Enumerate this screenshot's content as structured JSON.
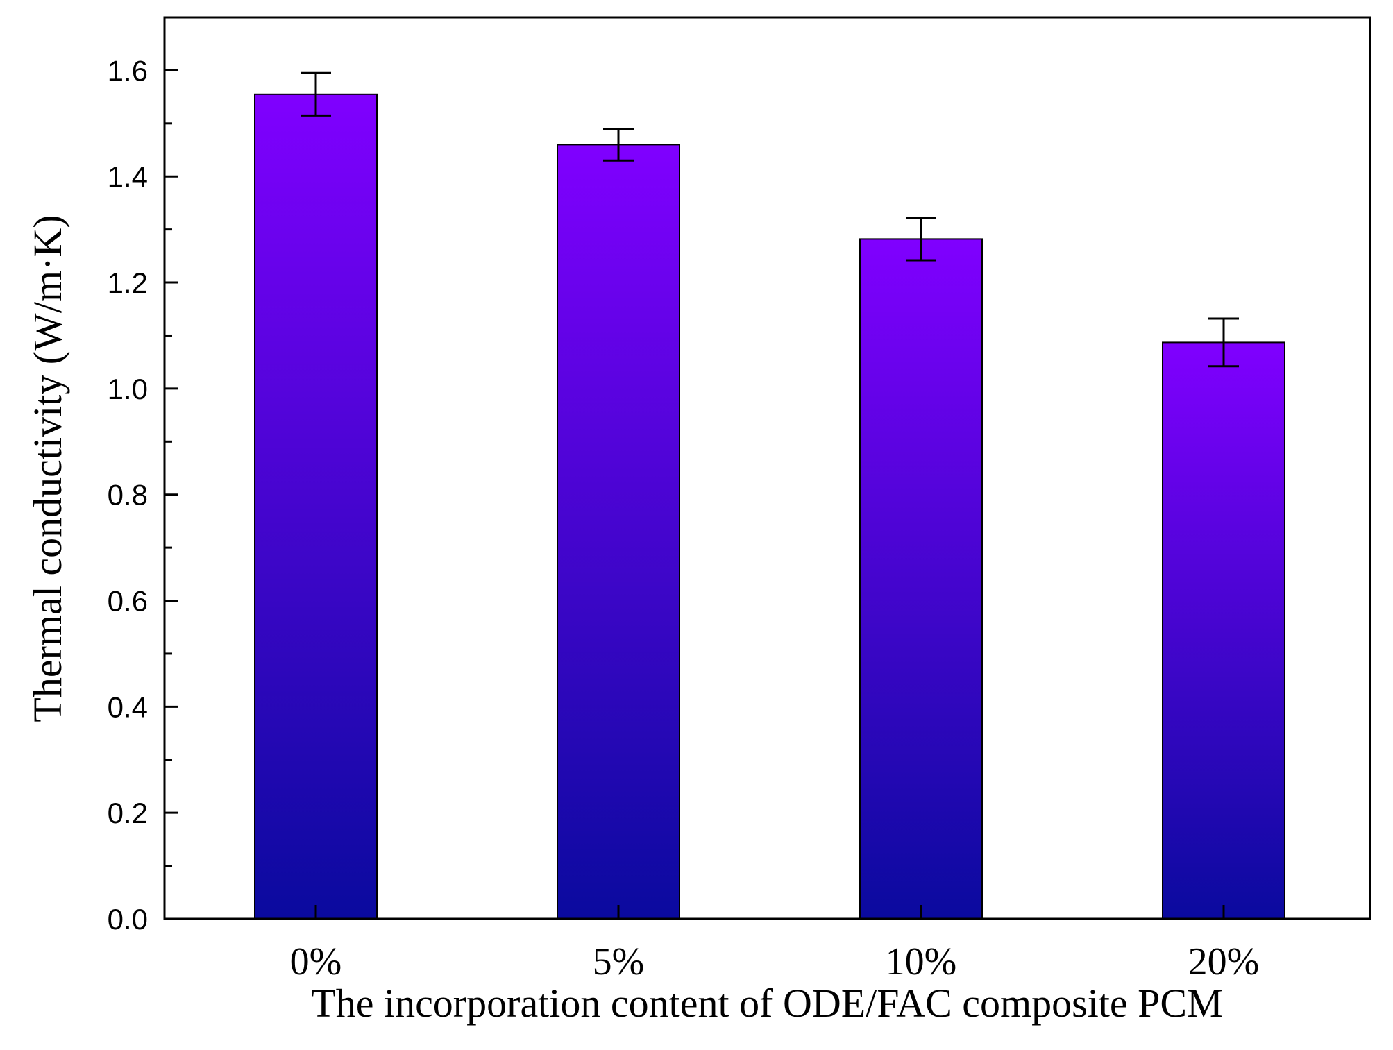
{
  "chart_data": {
    "type": "bar",
    "categories": [
      "0%",
      "5%",
      "10%",
      "20%"
    ],
    "values": [
      1.555,
      1.46,
      1.282,
      1.087
    ],
    "errors": [
      0.04,
      0.03,
      0.04,
      0.045
    ],
    "xlabel": "The incorporation content of ODE/FAC composite PCM",
    "ylabel": "Thermal conductivity (W/m·K)",
    "ylim": [
      0,
      1.7
    ],
    "yticks": [
      0.0,
      0.2,
      0.4,
      0.6,
      0.8,
      1.0,
      1.2,
      1.4,
      1.6
    ],
    "ytick_labels": [
      "0.0",
      "0.2",
      "0.4",
      "0.6",
      "0.8",
      "1.0",
      "1.2",
      "1.4",
      "1.6"
    ],
    "grid": false,
    "colors": {
      "bar_top": "#8000ff",
      "bar_bottom": "#0a0a9e",
      "axis": "#000000",
      "error_bar": "#000000"
    }
  }
}
